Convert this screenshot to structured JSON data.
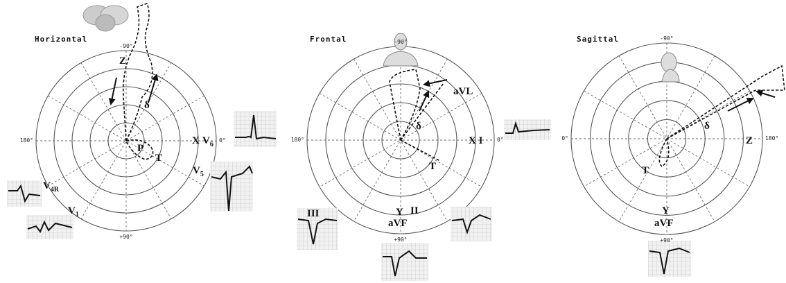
{
  "panels": [
    {
      "title": "Horizontal",
      "angles": {
        "top": "-90°",
        "right": "0°",
        "left": "180°",
        "bottom": "+90°"
      },
      "labels": [
        {
          "text": "Z"
        },
        {
          "text": "δ"
        },
        {
          "text": "P"
        },
        {
          "text": "T"
        },
        {
          "text": "X"
        },
        {
          "text": "V",
          "sub": "6"
        },
        {
          "text": "V",
          "sub": "5"
        },
        {
          "text": "V",
          "sub": "4R"
        },
        {
          "text": "V",
          "sub": "1"
        }
      ]
    },
    {
      "title": "Frontal",
      "angles": {
        "top": "-90°",
        "right": "0°",
        "left": "180°",
        "bottom": "+90°"
      },
      "labels": [
        {
          "text": "aVL"
        },
        {
          "text": "δ"
        },
        {
          "text": "X I"
        },
        {
          "text": "T"
        },
        {
          "text": "III"
        },
        {
          "text": "II"
        },
        {
          "text": "Y"
        },
        {
          "text": "aVF"
        }
      ]
    },
    {
      "title": "Sagittal",
      "angles": {
        "top": "-90°",
        "right": "180°",
        "left": "0°",
        "bottom": "+90°"
      },
      "labels": [
        {
          "text": "δ"
        },
        {
          "text": "Z"
        },
        {
          "text": "T"
        },
        {
          "text": "Y"
        },
        {
          "text": "aVF"
        }
      ]
    }
  ]
}
